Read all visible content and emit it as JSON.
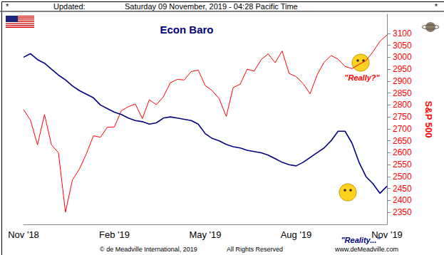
{
  "chart_data": {
    "type": "line",
    "title": "Econ Baro",
    "header": [
      "*",
      "Updated:",
      "Saturday 09 November, 2019 - 04:28 Pacific Time",
      "*"
    ],
    "footer": [
      "© de Meadville International, 2019",
      "All Rights Reserved",
      "www.deMeadville.com"
    ],
    "y_label": "S&P 500",
    "categories": [
      "Nov '18",
      null,
      null,
      null,
      null,
      null,
      null,
      null,
      null,
      null,
      null,
      null,
      null,
      "Feb '19",
      null,
      null,
      null,
      null,
      null,
      null,
      null,
      null,
      null,
      null,
      null,
      null,
      "May '19",
      null,
      null,
      null,
      null,
      null,
      null,
      null,
      null,
      null,
      null,
      null,
      null,
      "Aug '19",
      null,
      null,
      null,
      null,
      null,
      null,
      null,
      null,
      null,
      null,
      null,
      null,
      "Nov '19"
    ],
    "series": [
      {
        "name": "Econ Baro",
        "color": "#000080",
        "annotation": "\"Reality...\"",
        "values": [
          3000,
          3015,
          2990,
          2975,
          2950,
          2925,
          2905,
          2880,
          2860,
          2845,
          2830,
          2800,
          2785,
          2770,
          2760,
          2745,
          2735,
          2730,
          2720,
          2725,
          2745,
          2750,
          2745,
          2740,
          2735,
          2720,
          2680,
          2660,
          2650,
          2635,
          2625,
          2620,
          2610,
          2605,
          2600,
          2590,
          2575,
          2560,
          2550,
          2545,
          2560,
          2580,
          2600,
          2620,
          2650,
          2690,
          2690,
          2640,
          2560,
          2500,
          2470,
          2430,
          2460
        ]
      },
      {
        "name": "S&P 500",
        "color": "#ff0000",
        "annotation": "\"Really?\"",
        "values": [
          2781,
          2736,
          2633,
          2760,
          2633,
          2600,
          2351,
          2486,
          2532,
          2596,
          2671,
          2665,
          2707,
          2708,
          2776,
          2793,
          2804,
          2743,
          2822,
          2801,
          2834,
          2893,
          2907,
          2905,
          2940,
          2946,
          2881,
          2860,
          2826,
          2752,
          2873,
          2887,
          2950,
          2942,
          2990,
          3014,
          2977,
          3026,
          2932,
          2919,
          2889,
          2847,
          2926,
          2979,
          3007,
          2992,
          2962,
          2952,
          2970,
          2986,
          3023,
          3067,
          3093
        ]
      }
    ],
    "ylim": [
      2300,
      3180
    ],
    "yticks": [
      2350,
      2400,
      2450,
      2500,
      2550,
      2600,
      2650,
      2700,
      2750,
      2800,
      2850,
      2900,
      2950,
      3000,
      3050,
      3100
    ],
    "grid": false
  }
}
